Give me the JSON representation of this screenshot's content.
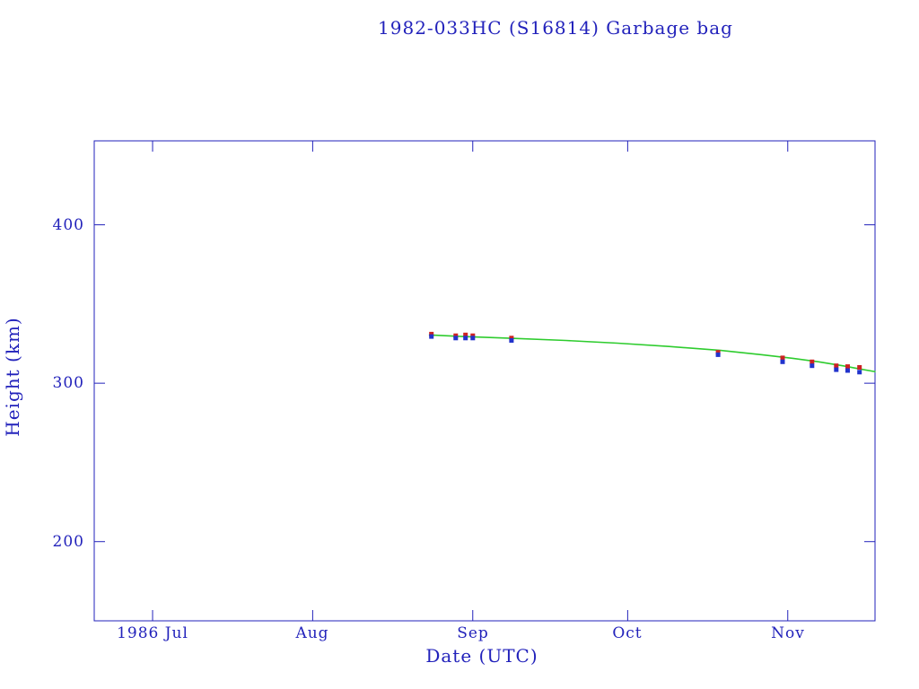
{
  "colors": {
    "text": "#2222bb",
    "frame": "#2222bb",
    "fit_line": "#2ecc2e",
    "apogee": "#cc2222",
    "perigee": "#2233cc",
    "background": "#ffffff"
  },
  "chart_data": {
    "type": "scatter",
    "title": "1982-033HC (S16814) Garbage bag",
    "xlabel": "Date (UTC)",
    "ylabel": "Height (km)",
    "grid": false,
    "legend": "none",
    "ylim": [
      150,
      453
    ],
    "y_ticks": [
      200,
      300,
      400
    ],
    "x_range_days": [
      -11.3,
      139.9
    ],
    "x_ticks": [
      {
        "label": "1986 Jul",
        "day": 0
      },
      {
        "label": "Aug",
        "day": 31
      },
      {
        "label": "Sep",
        "day": 62
      },
      {
        "label": "Oct",
        "day": 92
      },
      {
        "label": "Nov",
        "day": 123
      }
    ],
    "x_unit": "days since 1986 Jul 1",
    "series": [
      {
        "name": "apogee",
        "marker": "square",
        "color": "#cc2222",
        "points": [
          [
            54,
            331
          ],
          [
            58.7,
            330
          ],
          [
            60.6,
            330.5
          ],
          [
            62,
            330
          ],
          [
            69.5,
            328.5
          ],
          [
            109.5,
            319.5
          ],
          [
            122,
            316
          ],
          [
            127.7,
            313.5
          ],
          [
            132.4,
            311
          ],
          [
            134.6,
            310.5
          ],
          [
            136.9,
            310
          ]
        ]
      },
      {
        "name": "perigee",
        "marker": "square",
        "color": "#2233cc",
        "points": [
          [
            54,
            329.5
          ],
          [
            58.7,
            328.5
          ],
          [
            60.6,
            328.5
          ],
          [
            62,
            328.5
          ],
          [
            69.5,
            327
          ],
          [
            109.5,
            318
          ],
          [
            122,
            313.5
          ],
          [
            127.7,
            311
          ],
          [
            132.4,
            308.5
          ],
          [
            134.6,
            308
          ],
          [
            136.9,
            307
          ]
        ]
      },
      {
        "name": "decay-fit",
        "type": "line",
        "color": "#2ecc2e",
        "points": [
          [
            53.5,
            330.5
          ],
          [
            60,
            329.5
          ],
          [
            70,
            328.3
          ],
          [
            80,
            327
          ],
          [
            90,
            325.3
          ],
          [
            100,
            323.2
          ],
          [
            110,
            320.7
          ],
          [
            118,
            318
          ],
          [
            124,
            315.7
          ],
          [
            129,
            313.5
          ],
          [
            134,
            310.8
          ],
          [
            137,
            309
          ],
          [
            140,
            307.2
          ]
        ]
      }
    ]
  }
}
